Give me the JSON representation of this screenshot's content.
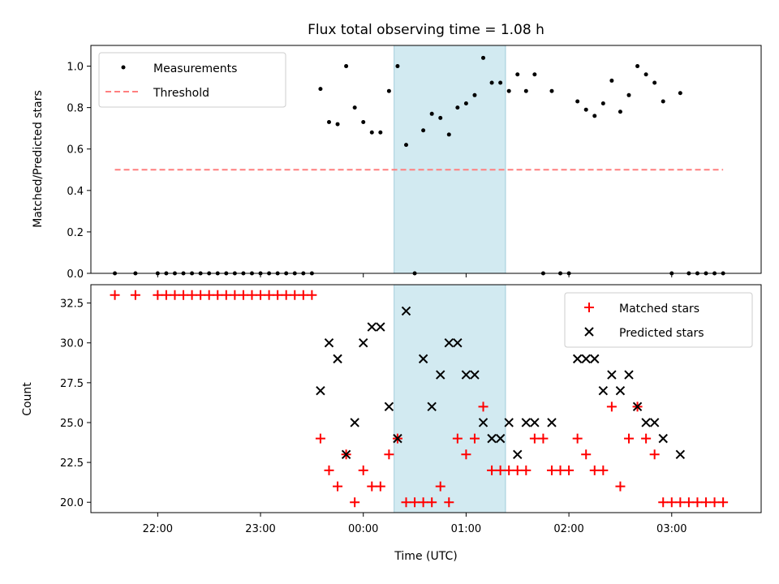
{
  "chart_data": [
    {
      "type": "scatter",
      "title": "Flux total observing time = 1.08 h",
      "xlabel": "",
      "ylabel": "Matched/Predicted stars",
      "ylim": [
        0,
        1.1
      ],
      "yticks": [
        0.0,
        0.2,
        0.4,
        0.6,
        0.8,
        1.0
      ],
      "ytick_labels": [
        "0.0",
        "0.2",
        "0.4",
        "0.6",
        "0.8",
        "1.0"
      ],
      "x_axis": "time (UTC), hours after 22:00 of first night",
      "grid": false,
      "legend_position": "top-left",
      "highlight_span": {
        "start": "00:18",
        "end": "01:23",
        "color": "#add8e6"
      },
      "series": [
        {
          "name": "Measurements",
          "marker": "dot",
          "color": "#000000",
          "points": [
            [
              "21:35",
              0
            ],
            [
              "21:47",
              0
            ],
            [
              "22:00",
              0
            ],
            [
              "22:05",
              0
            ],
            [
              "22:10",
              0
            ],
            [
              "22:15",
              0
            ],
            [
              "22:20",
              0
            ],
            [
              "22:25",
              0
            ],
            [
              "22:30",
              0
            ],
            [
              "22:35",
              0
            ],
            [
              "22:40",
              0
            ],
            [
              "22:45",
              0
            ],
            [
              "22:50",
              0
            ],
            [
              "22:55",
              0
            ],
            [
              "23:00",
              0
            ],
            [
              "23:05",
              0
            ],
            [
              "23:10",
              0
            ],
            [
              "23:15",
              0
            ],
            [
              "23:20",
              0
            ],
            [
              "23:25",
              0
            ],
            [
              "23:30",
              0
            ],
            [
              "23:35",
              0.89
            ],
            [
              "23:40",
              0.73
            ],
            [
              "23:45",
              0.72
            ],
            [
              "23:50",
              1.0
            ],
            [
              "23:55",
              0.8
            ],
            [
              "00:00",
              0.73
            ],
            [
              "00:05",
              0.68
            ],
            [
              "00:10",
              0.68
            ],
            [
              "00:15",
              0.88
            ],
            [
              "00:20",
              1.0
            ],
            [
              "00:25",
              0.62
            ],
            [
              "00:30",
              0
            ],
            [
              "00:35",
              0.69
            ],
            [
              "00:40",
              0.77
            ],
            [
              "00:45",
              0.75
            ],
            [
              "00:50",
              0.67
            ],
            [
              "00:55",
              0.8
            ],
            [
              "01:00",
              0.82
            ],
            [
              "01:05",
              0.86
            ],
            [
              "01:10",
              1.04
            ],
            [
              "01:15",
              0.92
            ],
            [
              "01:20",
              0.92
            ],
            [
              "01:25",
              0.88
            ],
            [
              "01:30",
              0.96
            ],
            [
              "01:35",
              0.88
            ],
            [
              "01:40",
              0.96
            ],
            [
              "01:45",
              0
            ],
            [
              "01:50",
              0.88
            ],
            [
              "01:55",
              0
            ],
            [
              "02:00",
              0
            ],
            [
              "02:05",
              0.83
            ],
            [
              "02:10",
              0.79
            ],
            [
              "02:15",
              0.76
            ],
            [
              "02:20",
              0.82
            ],
            [
              "02:25",
              0.93
            ],
            [
              "02:30",
              0.78
            ],
            [
              "02:35",
              0.86
            ],
            [
              "02:40",
              1.0
            ],
            [
              "02:45",
              0.96
            ],
            [
              "02:50",
              0.92
            ],
            [
              "02:55",
              0.83
            ],
            [
              "03:00",
              0
            ],
            [
              "03:05",
              0.87
            ],
            [
              "03:10",
              0
            ],
            [
              "03:15",
              0
            ],
            [
              "03:20",
              0
            ],
            [
              "03:25",
              0
            ],
            [
              "03:30",
              0
            ]
          ]
        },
        {
          "name": "Threshold",
          "marker": "dashed-line",
          "color": "#ff7f7f",
          "points": [
            [
              "21:35",
              0.5
            ],
            [
              "03:30",
              0.5
            ]
          ]
        }
      ]
    },
    {
      "type": "scatter",
      "title": "",
      "xlabel": "Time (UTC)",
      "ylabel": "Count",
      "ylim": [
        19.35,
        33.65
      ],
      "yticks": [
        20.0,
        22.5,
        25.0,
        27.5,
        30.0,
        32.5
      ],
      "ytick_labels": [
        "20.0",
        "22.5",
        "25.0",
        "27.5",
        "30.0",
        "32.5"
      ],
      "xticks": [
        "22:00",
        "23:00",
        "00:00",
        "01:00",
        "02:00",
        "03:00"
      ],
      "grid": false,
      "legend_position": "top-right",
      "highlight_span": {
        "start": "00:18",
        "end": "01:23",
        "color": "#add8e6"
      },
      "series": [
        {
          "name": "Matched stars",
          "marker": "plus",
          "color": "#ff0000",
          "points": [
            [
              "21:35",
              33
            ],
            [
              "21:47",
              33
            ],
            [
              "22:00",
              33
            ],
            [
              "22:05",
              33
            ],
            [
              "22:10",
              33
            ],
            [
              "22:15",
              33
            ],
            [
              "22:20",
              33
            ],
            [
              "22:25",
              33
            ],
            [
              "22:30",
              33
            ],
            [
              "22:35",
              33
            ],
            [
              "22:40",
              33
            ],
            [
              "22:45",
              33
            ],
            [
              "22:50",
              33
            ],
            [
              "22:55",
              33
            ],
            [
              "23:00",
              33
            ],
            [
              "23:05",
              33
            ],
            [
              "23:10",
              33
            ],
            [
              "23:15",
              33
            ],
            [
              "23:20",
              33
            ],
            [
              "23:25",
              33
            ],
            [
              "23:30",
              33
            ],
            [
              "23:35",
              24
            ],
            [
              "23:40",
              22
            ],
            [
              "23:45",
              21
            ],
            [
              "23:50",
              23
            ],
            [
              "23:55",
              20
            ],
            [
              "00:00",
              22
            ],
            [
              "00:05",
              21
            ],
            [
              "00:10",
              21
            ],
            [
              "00:15",
              23
            ],
            [
              "00:20",
              24
            ],
            [
              "00:25",
              20
            ],
            [
              "00:30",
              20
            ],
            [
              "00:35",
              20
            ],
            [
              "00:40",
              20
            ],
            [
              "00:45",
              21
            ],
            [
              "00:50",
              20
            ],
            [
              "00:55",
              24
            ],
            [
              "01:00",
              23
            ],
            [
              "01:05",
              24
            ],
            [
              "01:10",
              26
            ],
            [
              "01:15",
              22
            ],
            [
              "01:20",
              22
            ],
            [
              "01:25",
              22
            ],
            [
              "01:30",
              22
            ],
            [
              "01:35",
              22
            ],
            [
              "01:40",
              24
            ],
            [
              "01:45",
              24
            ],
            [
              "01:50",
              22
            ],
            [
              "01:55",
              22
            ],
            [
              "02:00",
              22
            ],
            [
              "02:05",
              24
            ],
            [
              "02:10",
              23
            ],
            [
              "02:15",
              22
            ],
            [
              "02:20",
              22
            ],
            [
              "02:25",
              26
            ],
            [
              "02:30",
              21
            ],
            [
              "02:35",
              24
            ],
            [
              "02:40",
              26
            ],
            [
              "02:45",
              24
            ],
            [
              "02:50",
              23
            ],
            [
              "02:55",
              20
            ],
            [
              "03:00",
              20
            ],
            [
              "03:05",
              20
            ],
            [
              "03:10",
              20
            ],
            [
              "03:15",
              20
            ],
            [
              "03:20",
              20
            ],
            [
              "03:25",
              20
            ],
            [
              "03:30",
              20
            ]
          ]
        },
        {
          "name": "Predicted stars",
          "marker": "x",
          "color": "#000000",
          "points": [
            [
              "23:35",
              27
            ],
            [
              "23:40",
              30
            ],
            [
              "23:45",
              29
            ],
            [
              "23:50",
              23
            ],
            [
              "23:55",
              25
            ],
            [
              "00:00",
              30
            ],
            [
              "00:05",
              31
            ],
            [
              "00:10",
              31
            ],
            [
              "00:15",
              26
            ],
            [
              "00:20",
              24
            ],
            [
              "00:25",
              32
            ],
            [
              "00:35",
              29
            ],
            [
              "00:40",
              26
            ],
            [
              "00:45",
              28
            ],
            [
              "00:50",
              30
            ],
            [
              "00:55",
              30
            ],
            [
              "01:00",
              28
            ],
            [
              "01:05",
              28
            ],
            [
              "01:10",
              25
            ],
            [
              "01:15",
              24
            ],
            [
              "01:20",
              24
            ],
            [
              "01:25",
              25
            ],
            [
              "01:30",
              23
            ],
            [
              "01:35",
              25
            ],
            [
              "01:40",
              25
            ],
            [
              "01:50",
              25
            ],
            [
              "02:05",
              29
            ],
            [
              "02:10",
              29
            ],
            [
              "02:15",
              29
            ],
            [
              "02:20",
              27
            ],
            [
              "02:25",
              28
            ],
            [
              "02:30",
              27
            ],
            [
              "02:35",
              28
            ],
            [
              "02:40",
              26
            ],
            [
              "02:45",
              25
            ],
            [
              "02:50",
              25
            ],
            [
              "02:55",
              24
            ],
            [
              "03:05",
              23
            ]
          ]
        }
      ]
    }
  ]
}
